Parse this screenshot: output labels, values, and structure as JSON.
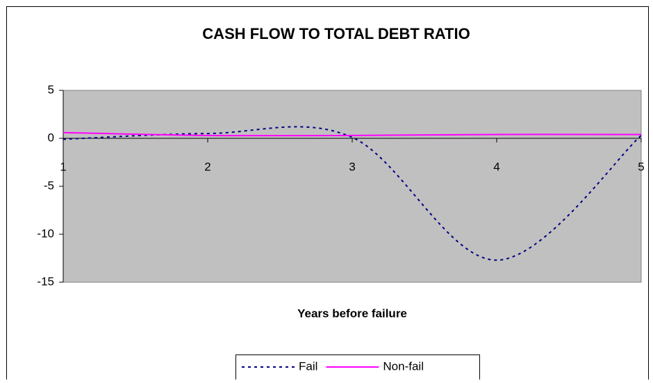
{
  "chart_data": {
    "type": "line",
    "title": "CASH FLOW TO TOTAL DEBT RATIO",
    "x_label": "Years before failure",
    "x": [
      1,
      2,
      3,
      4,
      5
    ],
    "series": [
      {
        "name": "Fail",
        "color": "#000080",
        "style": "dotted",
        "values": [
          -0.1,
          0.5,
          0.1,
          -12.7,
          0.3
        ]
      },
      {
        "name": "Non-fail",
        "color": "#ff00ff",
        "style": "solid",
        "values": [
          0.6,
          0.3,
          0.3,
          0.4,
          0.4
        ]
      }
    ],
    "xlim": [
      1,
      5
    ],
    "xticks": [
      1,
      2,
      3,
      4,
      5
    ],
    "ylim": [
      -15,
      5
    ],
    "yticks": [
      -15,
      -10,
      -5,
      0,
      5
    ],
    "smooth": true,
    "grid": false,
    "legend": "bottom",
    "plot_background": "#c0c0c0"
  }
}
